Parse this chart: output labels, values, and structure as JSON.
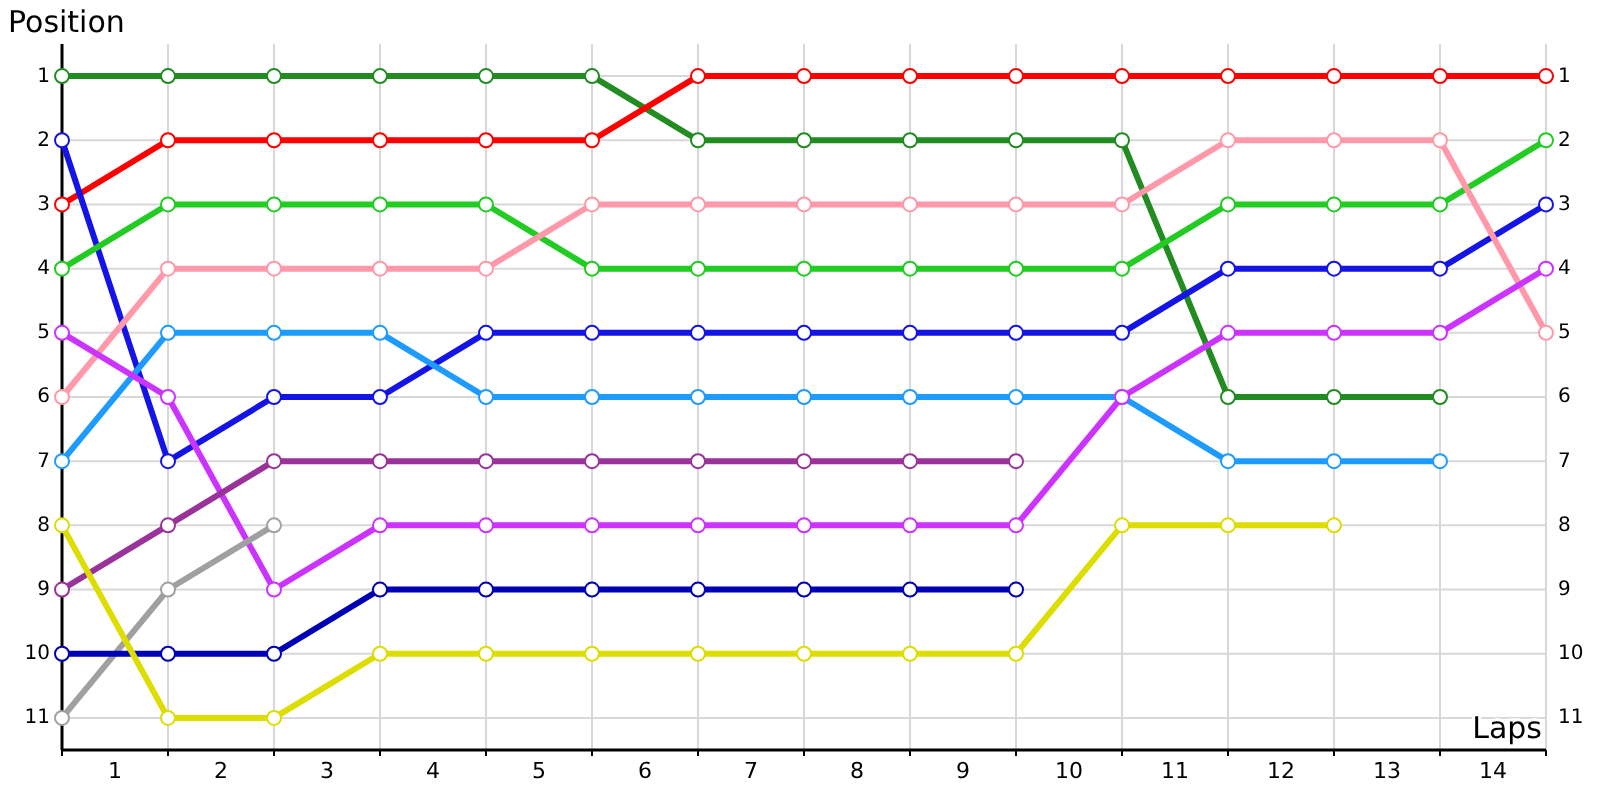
{
  "chart_data": {
    "type": "line",
    "xlabel": "Laps",
    "ylabel": "Position",
    "x": [
      0,
      1,
      2,
      3,
      4,
      5,
      6,
      7,
      8,
      9,
      10,
      11,
      12,
      13,
      14
    ],
    "xlim": [
      0,
      14
    ],
    "xticks": [
      {
        "value": 0,
        "label": null
      },
      {
        "value": 0.5,
        "label": "1"
      },
      {
        "value": 1,
        "label": null
      },
      {
        "value": 1.5,
        "label": "2"
      },
      {
        "value": 2,
        "label": null
      },
      {
        "value": 2.5,
        "label": "3"
      },
      {
        "value": 3,
        "label": null
      },
      {
        "value": 3.5,
        "label": "4"
      },
      {
        "value": 4,
        "label": null
      },
      {
        "value": 4.5,
        "label": "5"
      },
      {
        "value": 5,
        "label": null
      },
      {
        "value": 5.5,
        "label": "6"
      },
      {
        "value": 6,
        "label": null
      },
      {
        "value": 6.5,
        "label": "7"
      },
      {
        "value": 7,
        "label": null
      },
      {
        "value": 7.5,
        "label": "8"
      },
      {
        "value": 8,
        "label": null
      },
      {
        "value": 8.5,
        "label": "9"
      },
      {
        "value": 9,
        "label": null
      },
      {
        "value": 9.5,
        "label": "10"
      },
      {
        "value": 10,
        "label": null
      },
      {
        "value": 10.5,
        "label": "11"
      },
      {
        "value": 11,
        "label": null
      },
      {
        "value": 11.5,
        "label": "12"
      },
      {
        "value": 12,
        "label": null
      },
      {
        "value": 12.5,
        "label": "13"
      },
      {
        "value": 13,
        "label": null
      },
      {
        "value": 13.5,
        "label": "14"
      },
      {
        "value": 14,
        "label": null
      }
    ],
    "ylim": [
      11.5,
      0.5
    ],
    "yticks": [
      1,
      2,
      3,
      4,
      5,
      6,
      7,
      8,
      9,
      10,
      11
    ],
    "y2lim": [
      11.5,
      0.5
    ],
    "y2ticks": [
      1,
      2,
      3,
      4,
      5,
      6,
      7,
      8,
      9,
      10,
      11
    ],
    "grid": true,
    "marker": "circle",
    "line_style": "solid",
    "series": [
      {
        "color": "#228b22",
        "values": [
          1,
          1,
          1,
          1,
          1,
          1,
          2,
          2,
          2,
          2,
          2,
          6,
          6,
          6,
          null
        ]
      },
      {
        "color": "#ff0000",
        "values": [
          3,
          2,
          2,
          2,
          2,
          2,
          1,
          1,
          1,
          1,
          1,
          1,
          1,
          1,
          1
        ]
      },
      {
        "color": "#1414e6",
        "values": [
          2,
          7,
          6,
          6,
          5,
          5,
          5,
          5,
          5,
          5,
          5,
          4,
          4,
          4,
          3
        ]
      },
      {
        "color": "#22cc22",
        "values": [
          4,
          3,
          3,
          3,
          3,
          4,
          4,
          4,
          4,
          4,
          4,
          3,
          3,
          3,
          2
        ]
      },
      {
        "color": "#ff99aa",
        "values": [
          6,
          4,
          4,
          4,
          4,
          3,
          3,
          3,
          3,
          3,
          3,
          2,
          2,
          2,
          5
        ]
      },
      {
        "color": "#1e9bff",
        "values": [
          7,
          5,
          5,
          5,
          6,
          6,
          6,
          6,
          6,
          6,
          6,
          7,
          7,
          7,
          null
        ]
      },
      {
        "color": "#cc33ff",
        "values": [
          5,
          6,
          9,
          8,
          8,
          8,
          8,
          8,
          8,
          8,
          6,
          5,
          5,
          5,
          4
        ]
      },
      {
        "color": "#993399",
        "values": [
          9,
          8,
          7,
          7,
          7,
          7,
          7,
          7,
          7,
          7,
          null,
          null,
          null,
          null,
          null
        ]
      },
      {
        "color": "#a0a0a0",
        "values": [
          11,
          9,
          8,
          null,
          null,
          null,
          null,
          null,
          null,
          null,
          null,
          null,
          null,
          null,
          null
        ]
      },
      {
        "color": "#0000b4",
        "values": [
          10,
          10,
          10,
          9,
          9,
          9,
          9,
          9,
          9,
          9,
          null,
          null,
          null,
          null,
          null
        ]
      },
      {
        "color": "#dddd00",
        "values": [
          8,
          11,
          11,
          10,
          10,
          10,
          10,
          10,
          10,
          10,
          8,
          8,
          8,
          null,
          null
        ]
      }
    ]
  }
}
